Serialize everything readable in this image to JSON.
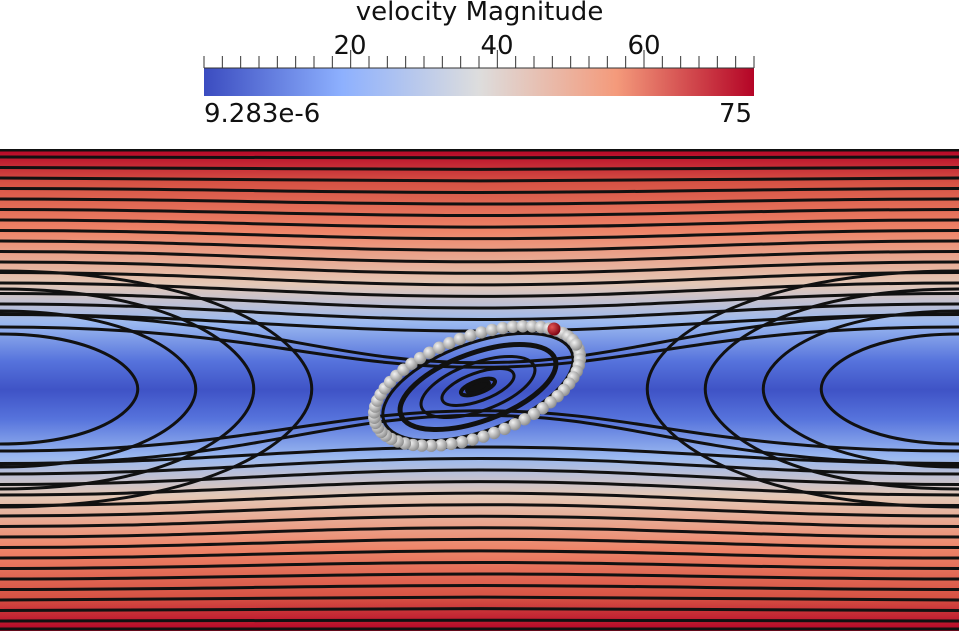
{
  "chart_data": {
    "type": "heatmap",
    "title": "velocity Magnitude",
    "colorbar": {
      "range": [
        9.283e-06,
        75
      ],
      "min_label": "9.283e-6",
      "max_label": "75",
      "ticks": [
        20,
        40,
        60
      ],
      "tick_labels": [
        "20",
        "40",
        "60"
      ],
      "colormap": [
        "#3b4cc0",
        "#8db0fe",
        "#dddddd",
        "#f49a7b",
        "#b40426"
      ]
    },
    "field": {
      "description_of_view": "streamlines over velocity magnitude",
      "vortex_center_marker_color": "#b40426",
      "particle_count": 60,
      "particle_color": "#c8c8c8"
    }
  }
}
